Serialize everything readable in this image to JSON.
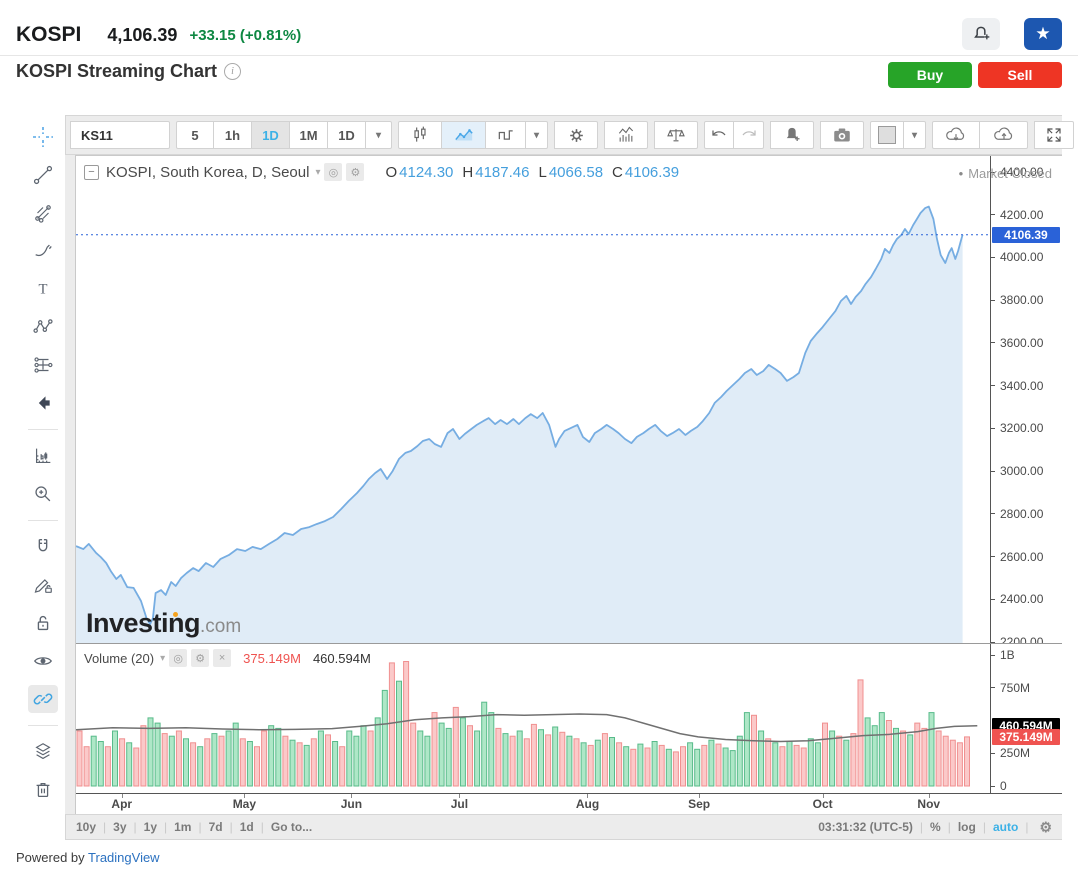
{
  "header": {
    "symbol": "KOSPI",
    "price": "4,106.39",
    "change": "+33.15",
    "change_pct": "(+0.81%)"
  },
  "subheader": {
    "title": "KOSPI Streaming Chart",
    "buy_label": "Buy",
    "sell_label": "Sell"
  },
  "toolbar": {
    "symbol": "KS11",
    "intervals": [
      "5",
      "1h",
      "1D",
      "1M",
      "1D"
    ],
    "selected_interval": "1D"
  },
  "legend": {
    "title": "KOSPI, South Korea, D, Seoul",
    "o_key": "O",
    "o_val": "4124.30",
    "h_key": "H",
    "h_val": "4187.46",
    "l_key": "L",
    "l_val": "4066.58",
    "c_key": "C",
    "c_val": "4106.39",
    "market_status": "Market Closed"
  },
  "volume_legend": {
    "label": "Volume (20)",
    "current": "375.149M",
    "ma": "460.594M"
  },
  "time_axis": {
    "months": [
      {
        "label": "Apr",
        "f": 0.05
      },
      {
        "label": "May",
        "f": 0.184
      },
      {
        "label": "Jun",
        "f": 0.301
      },
      {
        "label": "Jul",
        "f": 0.419
      },
      {
        "label": "Aug",
        "f": 0.559
      },
      {
        "label": "Sep",
        "f": 0.681
      },
      {
        "label": "Oct",
        "f": 0.816
      },
      {
        "label": "Nov",
        "f": 0.932
      }
    ]
  },
  "bottom_bar": {
    "ranges": [
      "10y",
      "3y",
      "1y",
      "1m",
      "7d",
      "1d"
    ],
    "goto": "Go to...",
    "clock": "03:31:32 (UTC-5)",
    "percent": "%",
    "log": "log",
    "auto": "auto"
  },
  "footer": {
    "powered": "Powered by ",
    "link": "TradingView"
  },
  "watermark": {
    "bold": "Investing",
    "suffix": ".com"
  },
  "icons": {
    "star": "★",
    "bullet": "•",
    "caret_down": "▾",
    "eye": "◎",
    "gear": "⚙",
    "close": "×",
    "minus": "−",
    "info": "i"
  },
  "colors": {
    "accent_blue": "#3cb1e6",
    "value_blue": "#459fdd",
    "price_label_blue": "#2a62d8",
    "green_text": "#0d8742",
    "buy_green": "#27a428",
    "sell_red": "#ee3524",
    "line_blue": "#76ade2",
    "area_fill": "#85b2e0",
    "vol_green": "#aee7c7",
    "vol_green_border": "#58bb8a",
    "vol_red": "#fbc9c9",
    "vol_red_border": "#f09090",
    "vol_red_label": "#ef5350",
    "vol_ma_label": "#000000",
    "ma_gray": "#707070"
  },
  "chart_data": [
    {
      "type": "area",
      "name": "KOSPI price, daily",
      "x_range": [
        "Apr",
        "Nov"
      ],
      "y_range": [
        2200,
        4400
      ],
      "y_ticks": [
        4400,
        4200,
        4000,
        3800,
        3600,
        3400,
        3200,
        3000,
        2800,
        2600,
        2400,
        2200
      ],
      "current": 4106.39,
      "ohlc": {
        "open": 4124.3,
        "high": 4187.46,
        "low": 4066.58,
        "close": 4106.39,
        "change": 33.15,
        "change_pct": 0.81
      },
      "points": [
        [
          0,
          2649
        ],
        [
          0.008,
          2635
        ],
        [
          0.014,
          2659
        ],
        [
          0.022,
          2617
        ],
        [
          0.027,
          2598
        ],
        [
          0.033,
          2570
        ],
        [
          0.038,
          2532
        ],
        [
          0.044,
          2495
        ],
        [
          0.049,
          2514
        ],
        [
          0.056,
          2457
        ],
        [
          0.063,
          2453
        ],
        [
          0.071,
          2392
        ],
        [
          0.077,
          2312
        ],
        [
          0.081,
          2284
        ],
        [
          0.084,
          2312
        ],
        [
          0.087,
          2429
        ],
        [
          0.093,
          2443
        ],
        [
          0.098,
          2420
        ],
        [
          0.104,
          2481
        ],
        [
          0.109,
          2462
        ],
        [
          0.115,
          2500
        ],
        [
          0.121,
          2523
        ],
        [
          0.128,
          2546
        ],
        [
          0.134,
          2532
        ],
        [
          0.142,
          2570
        ],
        [
          0.15,
          2551
        ],
        [
          0.158,
          2589
        ],
        [
          0.167,
          2607
        ],
        [
          0.176,
          2635
        ],
        [
          0.185,
          2626
        ],
        [
          0.193,
          2645
        ],
        [
          0.202,
          2635
        ],
        [
          0.211,
          2659
        ],
        [
          0.22,
          2682
        ],
        [
          0.228,
          2710
        ],
        [
          0.237,
          2701
        ],
        [
          0.246,
          2729
        ],
        [
          0.255,
          2738
        ],
        [
          0.263,
          2752
        ],
        [
          0.272,
          2766
        ],
        [
          0.281,
          2785
        ],
        [
          0.29,
          2823
        ],
        [
          0.298,
          2860
        ],
        [
          0.307,
          2897
        ],
        [
          0.314,
          2930
        ],
        [
          0.32,
          2963
        ],
        [
          0.327,
          2991
        ],
        [
          0.333,
          3010
        ],
        [
          0.34,
          2963
        ],
        [
          0.346,
          3000
        ],
        [
          0.353,
          3057
        ],
        [
          0.36,
          3085
        ],
        [
          0.366,
          3094
        ],
        [
          0.373,
          3117
        ],
        [
          0.379,
          3141
        ],
        [
          0.386,
          3150
        ],
        [
          0.392,
          3127
        ],
        [
          0.399,
          3113
        ],
        [
          0.406,
          3178
        ],
        [
          0.412,
          3197
        ],
        [
          0.419,
          3150
        ],
        [
          0.425,
          3174
        ],
        [
          0.432,
          3197
        ],
        [
          0.438,
          3216
        ],
        [
          0.445,
          3234
        ],
        [
          0.451,
          3248
        ],
        [
          0.458,
          3220
        ],
        [
          0.464,
          3239
        ],
        [
          0.471,
          3220
        ],
        [
          0.478,
          3244
        ],
        [
          0.484,
          3220
        ],
        [
          0.491,
          3248
        ],
        [
          0.497,
          3267
        ],
        [
          0.504,
          3248
        ],
        [
          0.51,
          3272
        ],
        [
          0.517,
          3216
        ],
        [
          0.524,
          3113
        ],
        [
          0.528,
          3150
        ],
        [
          0.534,
          3188
        ],
        [
          0.541,
          3202
        ],
        [
          0.548,
          3216
        ],
        [
          0.554,
          3160
        ],
        [
          0.561,
          3136
        ],
        [
          0.567,
          3178
        ],
        [
          0.574,
          3197
        ],
        [
          0.58,
          3216
        ],
        [
          0.587,
          3197
        ],
        [
          0.593,
          3178
        ],
        [
          0.6,
          3150
        ],
        [
          0.607,
          3131
        ],
        [
          0.613,
          3160
        ],
        [
          0.62,
          3178
        ],
        [
          0.626,
          3197
        ],
        [
          0.633,
          3216
        ],
        [
          0.639,
          3188
        ],
        [
          0.646,
          3164
        ],
        [
          0.652,
          3178
        ],
        [
          0.659,
          3197
        ],
        [
          0.666,
          3169
        ],
        [
          0.672,
          3188
        ],
        [
          0.679,
          3207
        ],
        [
          0.685,
          3234
        ],
        [
          0.692,
          3272
        ],
        [
          0.698,
          3319
        ],
        [
          0.705,
          3347
        ],
        [
          0.711,
          3375
        ],
        [
          0.718,
          3403
        ],
        [
          0.725,
          3431
        ],
        [
          0.731,
          3459
        ],
        [
          0.738,
          3478
        ],
        [
          0.744,
          3450
        ],
        [
          0.751,
          3468
        ],
        [
          0.757,
          3497
        ],
        [
          0.764,
          3478
        ],
        [
          0.77,
          3459
        ],
        [
          0.777,
          3422
        ],
        [
          0.784,
          3440
        ],
        [
          0.79,
          3459
        ],
        [
          0.797,
          3553
        ],
        [
          0.803,
          3609
        ],
        [
          0.81,
          3646
        ],
        [
          0.816,
          3674
        ],
        [
          0.823,
          3712
        ],
        [
          0.83,
          3749
        ],
        [
          0.836,
          3796
        ],
        [
          0.842,
          3820
        ],
        [
          0.847,
          3782
        ],
        [
          0.852,
          3815
        ],
        [
          0.858,
          3843
        ],
        [
          0.863,
          3876
        ],
        [
          0.869,
          3909
        ],
        [
          0.874,
          3946
        ],
        [
          0.88,
          3993
        ],
        [
          0.884,
          4040
        ],
        [
          0.889,
          4021
        ],
        [
          0.893,
          4058
        ],
        [
          0.897,
          4086
        ],
        [
          0.902,
          4105
        ],
        [
          0.906,
          4133
        ],
        [
          0.91,
          4110
        ],
        [
          0.915,
          4152
        ],
        [
          0.919,
          4180
        ],
        [
          0.923,
          4208
        ],
        [
          0.928,
          4231
        ],
        [
          0.932,
          4238
        ],
        [
          0.937,
          4180
        ],
        [
          0.941,
          4086
        ],
        [
          0.945,
          4011
        ],
        [
          0.95,
          3974
        ],
        [
          0.954,
          4021
        ],
        [
          0.957,
          4044
        ],
        [
          0.961,
          3993
        ],
        [
          0.964,
          4030
        ],
        [
          0.967,
          4077
        ],
        [
          0.969,
          4106.39
        ]
      ]
    },
    {
      "type": "bar",
      "name": "Volume with MA(20)",
      "y_range_millions": [
        0,
        1000
      ],
      "ticks": [
        {
          "label": "1B",
          "v": 1000
        },
        {
          "label": "750M",
          "v": 750
        },
        {
          "label": "250M",
          "v": 250
        },
        {
          "label": "0",
          "v": 0
        }
      ],
      "value_labels": [
        {
          "label": "460.594M",
          "v": 460.594,
          "bg": "#000000"
        },
        {
          "label": "375.149M",
          "v": 375.149,
          "bg": "#ef5350"
        }
      ],
      "values": [
        420,
        300,
        380,
        340,
        300,
        420,
        360,
        330,
        290,
        460,
        520,
        480,
        400,
        380,
        420,
        360,
        330,
        300,
        360,
        400,
        380,
        420,
        480,
        360,
        340,
        300,
        420,
        460,
        440,
        380,
        350,
        330,
        310,
        360,
        420,
        390,
        340,
        300,
        420,
        380,
        460,
        420,
        520,
        730,
        940,
        800,
        950,
        480,
        420,
        380,
        560,
        480,
        440,
        600,
        520,
        460,
        420,
        640,
        560,
        440,
        400,
        380,
        420,
        360,
        470,
        430,
        390,
        450,
        410,
        380,
        360,
        330,
        310,
        350,
        400,
        370,
        330,
        300,
        280,
        320,
        290,
        340,
        310,
        280,
        260,
        300,
        330,
        280,
        310,
        350,
        320,
        290,
        270,
        380,
        560,
        540,
        420,
        360,
        330,
        300,
        340,
        310,
        290,
        360,
        330,
        480,
        420,
        380,
        350,
        400,
        810,
        520,
        460,
        560,
        500,
        440,
        420,
        390,
        480,
        440,
        560,
        420,
        380,
        350,
        330,
        375
      ],
      "colors": "rrggrgrgrrggrgrgrgrgrggrgrrggrgrgrgrgrgggrggrgrrggrggrgrgggrgrgrrgrgrgrgrgrgrgrgrgrgrrggrgrggggrgrgrgrrggrgrgrrgggrgrgrrgrrrr",
      "ma": [
        [
          0,
          430
        ],
        [
          0.04,
          445
        ],
        [
          0.08,
          440
        ],
        [
          0.12,
          445
        ],
        [
          0.16,
          435
        ],
        [
          0.2,
          430
        ],
        [
          0.24,
          432
        ],
        [
          0.28,
          438
        ],
        [
          0.31,
          455
        ],
        [
          0.34,
          475
        ],
        [
          0.37,
          505
        ],
        [
          0.4,
          520
        ],
        [
          0.43,
          530
        ],
        [
          0.46,
          545
        ],
        [
          0.49,
          540
        ],
        [
          0.52,
          545
        ],
        [
          0.55,
          550
        ],
        [
          0.58,
          545
        ],
        [
          0.6,
          520
        ],
        [
          0.62,
          480
        ],
        [
          0.64,
          440
        ],
        [
          0.66,
          400
        ],
        [
          0.68,
          375
        ],
        [
          0.71,
          355
        ],
        [
          0.74,
          345
        ],
        [
          0.77,
          340
        ],
        [
          0.8,
          345
        ],
        [
          0.83,
          365
        ],
        [
          0.86,
          385
        ],
        [
          0.89,
          395
        ],
        [
          0.92,
          415
        ],
        [
          0.94,
          440
        ],
        [
          0.96,
          455
        ],
        [
          0.985,
          460.594
        ]
      ]
    }
  ]
}
